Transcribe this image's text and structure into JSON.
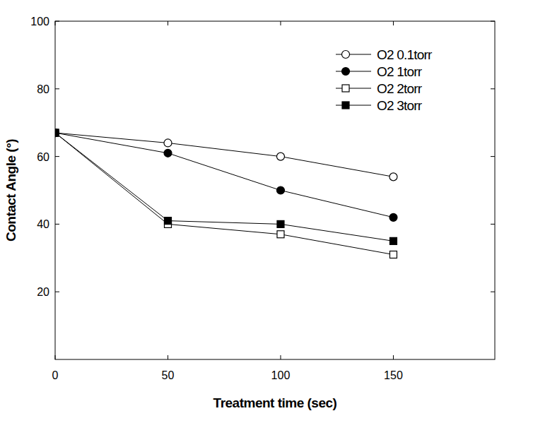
{
  "chart_data": {
    "type": "line",
    "x_label": "Treatment time (sec)",
    "y_label": "Contact Angle (°)",
    "x": [
      0,
      50,
      100,
      150
    ],
    "xlim": [
      0,
      195
    ],
    "xticks": [
      0,
      50,
      100,
      150
    ],
    "ylim": [
      0,
      100
    ],
    "yticks": [
      20,
      40,
      60,
      80,
      100
    ],
    "grid": false,
    "legend": "upper right",
    "series": [
      {
        "name": "O2 0.1torr",
        "color": "#000000",
        "marker": "open-circle",
        "values": [
          67,
          64,
          60,
          54
        ]
      },
      {
        "name": "O2 1torr",
        "color": "#000000",
        "marker": "filled-circle",
        "values": [
          67,
          61,
          50,
          42
        ]
      },
      {
        "name": "O2 2torr",
        "color": "#000000",
        "marker": "open-square",
        "values": [
          67,
          40,
          37,
          31
        ]
      },
      {
        "name": "O2 3torr",
        "color": "#000000",
        "marker": "filled-square",
        "values": [
          67,
          41,
          40,
          35
        ]
      }
    ]
  }
}
